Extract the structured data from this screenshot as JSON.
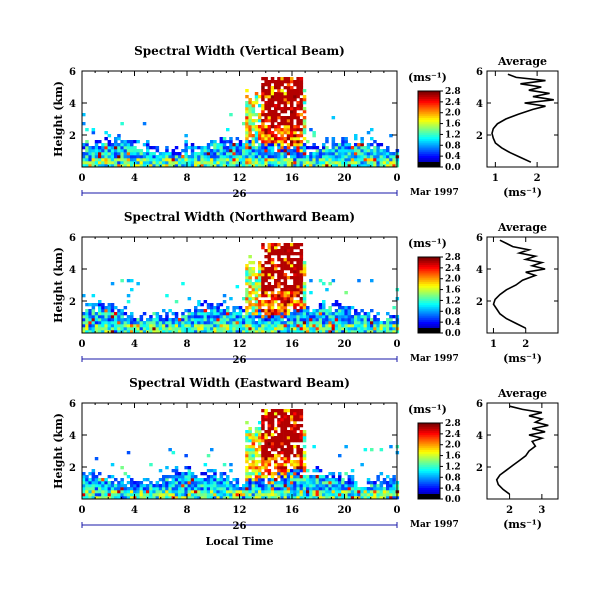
{
  "chart_data": [
    {
      "type": "heatmap",
      "title": "Spectral Width (Vertical Beam)",
      "ylabel": "Height (km)",
      "xticks": [
        "0",
        "4",
        "8",
        "12",
        "16",
        "20",
        "0"
      ],
      "yticks": [
        "2",
        "4",
        "6"
      ],
      "ylim": [
        0,
        6
      ],
      "date_label": "26",
      "month_label": "Mar 1997",
      "colorbar": {
        "unit": "(ms⁻¹)",
        "ticks": [
          "0.0",
          "0.4",
          "0.8",
          "1.2",
          "1.6",
          "2.0",
          "2.4",
          "2.8"
        ]
      },
      "average": {
        "title": "Average",
        "xticks": [
          "1",
          "2"
        ],
        "xlabel": "(ms⁻¹)",
        "yticks": [
          "2",
          "4",
          "6"
        ],
        "xlim": [
          0.8,
          2.5
        ],
        "profile": [
          [
            0.3,
            1.85
          ],
          [
            0.6,
            1.6
          ],
          [
            0.9,
            1.35
          ],
          [
            1.2,
            1.15
          ],
          [
            1.5,
            1.0
          ],
          [
            1.8,
            0.95
          ],
          [
            2.1,
            0.92
          ],
          [
            2.4,
            0.95
          ],
          [
            2.7,
            1.05
          ],
          [
            3.0,
            1.25
          ],
          [
            3.3,
            1.55
          ],
          [
            3.6,
            1.9
          ],
          [
            3.8,
            2.2
          ],
          [
            4.0,
            1.7
          ],
          [
            4.2,
            2.4
          ],
          [
            4.4,
            1.9
          ],
          [
            4.6,
            2.3
          ],
          [
            4.8,
            1.8
          ],
          [
            5.0,
            2.1
          ],
          [
            5.2,
            1.6
          ],
          [
            5.4,
            2.2
          ],
          [
            5.6,
            1.5
          ],
          [
            5.8,
            1.3
          ]
        ]
      }
    },
    {
      "type": "heatmap",
      "title": "Spectral Width (Northward Beam)",
      "ylabel": "Height (km)",
      "xticks": [
        "0",
        "4",
        "8",
        "12",
        "16",
        "20",
        "0"
      ],
      "yticks": [
        "2",
        "4",
        "6"
      ],
      "ylim": [
        0,
        6
      ],
      "date_label": "26",
      "month_label": "Mar 1997",
      "colorbar": {
        "unit": "(ms⁻¹)",
        "ticks": [
          "0.0",
          "0.4",
          "0.8",
          "1.2",
          "1.6",
          "2.0",
          "2.4",
          "2.8"
        ]
      },
      "average": {
        "title": "Average",
        "xticks": [
          "1",
          "2"
        ],
        "xlabel": "(ms⁻¹)",
        "yticks": [
          "2",
          "4",
          "6"
        ],
        "xlim": [
          0.8,
          3.0
        ],
        "profile": [
          [
            0.3,
            2.0
          ],
          [
            0.6,
            1.7
          ],
          [
            0.9,
            1.4
          ],
          [
            1.2,
            1.2
          ],
          [
            1.5,
            1.1
          ],
          [
            1.8,
            1.0
          ],
          [
            2.1,
            1.05
          ],
          [
            2.4,
            1.2
          ],
          [
            2.7,
            1.4
          ],
          [
            3.0,
            1.7
          ],
          [
            3.3,
            1.9
          ],
          [
            3.6,
            2.3
          ],
          [
            3.8,
            2.0
          ],
          [
            4.0,
            2.6
          ],
          [
            4.2,
            2.2
          ],
          [
            4.4,
            2.5
          ],
          [
            4.6,
            2.0
          ],
          [
            4.8,
            2.3
          ],
          [
            5.0,
            1.8
          ],
          [
            5.2,
            2.1
          ],
          [
            5.4,
            1.6
          ],
          [
            5.6,
            1.4
          ],
          [
            5.8,
            1.2
          ]
        ]
      }
    },
    {
      "type": "heatmap",
      "title": "Spectral Width (Eastward Beam)",
      "ylabel": "Height (km)",
      "xticks": [
        "0",
        "4",
        "8",
        "12",
        "16",
        "20",
        "0"
      ],
      "yticks": [
        "2",
        "4",
        "6"
      ],
      "ylim": [
        0,
        6
      ],
      "date_label": "26",
      "month_label": "Mar 1997",
      "xlabel": "Local Time",
      "colorbar": {
        "unit": "(ms⁻¹)",
        "ticks": [
          "0.0",
          "0.4",
          "0.8",
          "1.2",
          "1.6",
          "2.0",
          "2.4",
          "2.8"
        ]
      },
      "average": {
        "title": "Average",
        "xticks": [
          "2",
          "3"
        ],
        "xlabel": "(ms⁻¹)",
        "yticks": [
          "2",
          "4",
          "6"
        ],
        "xlim": [
          1.3,
          3.5
        ],
        "profile": [
          [
            0.3,
            2.0
          ],
          [
            0.6,
            1.8
          ],
          [
            0.9,
            1.65
          ],
          [
            1.2,
            1.6
          ],
          [
            1.5,
            1.7
          ],
          [
            1.8,
            1.9
          ],
          [
            2.1,
            2.1
          ],
          [
            2.4,
            2.3
          ],
          [
            2.7,
            2.5
          ],
          [
            3.0,
            2.6
          ],
          [
            3.3,
            2.8
          ],
          [
            3.6,
            2.7
          ],
          [
            3.8,
            3.0
          ],
          [
            4.0,
            2.6
          ],
          [
            4.2,
            3.1
          ],
          [
            4.4,
            2.7
          ],
          [
            4.6,
            3.2
          ],
          [
            4.8,
            2.8
          ],
          [
            5.0,
            3.0
          ],
          [
            5.2,
            2.6
          ],
          [
            5.4,
            3.0
          ],
          [
            5.6,
            2.4
          ],
          [
            5.8,
            2.0
          ]
        ]
      }
    }
  ]
}
